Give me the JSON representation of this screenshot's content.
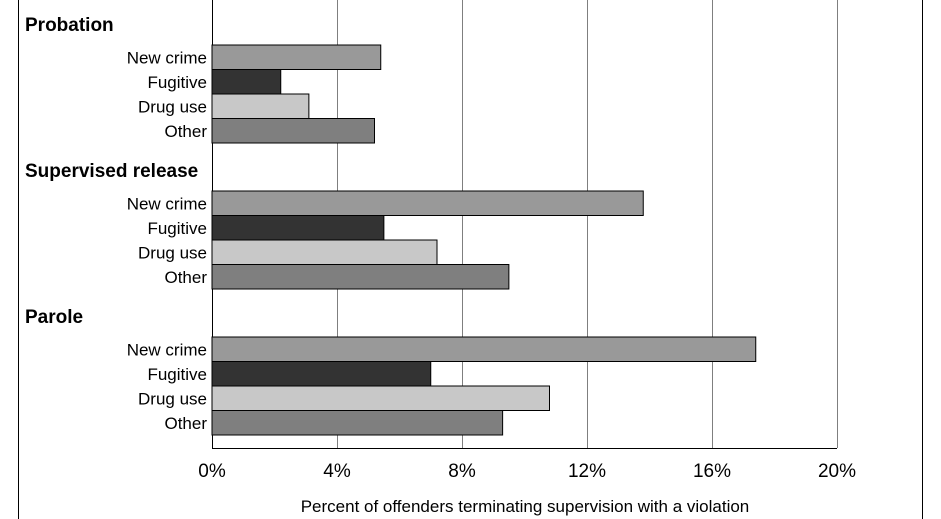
{
  "chart_data": {
    "type": "bar",
    "orientation": "horizontal",
    "xlabel": "Percent of offenders terminating supervision with a violation",
    "ylabel": "",
    "xlim": [
      0,
      20
    ],
    "ticks": [
      0,
      4,
      8,
      12,
      16,
      20
    ],
    "tick_labels": [
      "0%",
      "4%",
      "8%",
      "12%",
      "16%",
      "20%"
    ],
    "grid": "vertical",
    "categories": [
      "New crime",
      "Fugitive",
      "Drug use",
      "Other"
    ],
    "category_colors": [
      "#999999",
      "#333333",
      "#c8c8c8",
      "#7f7f7f"
    ],
    "groups": [
      {
        "name": "Probation",
        "items": [
          {
            "label": "New crime",
            "value": 5.4
          },
          {
            "label": "Fugitive",
            "value": 2.2
          },
          {
            "label": "Drug use",
            "value": 3.1
          },
          {
            "label": "Other",
            "value": 5.2
          }
        ]
      },
      {
        "name": "Supervised release",
        "items": [
          {
            "label": "New crime",
            "value": 13.8
          },
          {
            "label": "Fugitive",
            "value": 5.5
          },
          {
            "label": "Drug use",
            "value": 7.2
          },
          {
            "label": "Other",
            "value": 9.5
          }
        ]
      },
      {
        "name": "Parole",
        "items": [
          {
            "label": "New crime",
            "value": 17.4
          },
          {
            "label": "Fugitive",
            "value": 7.0
          },
          {
            "label": "Drug use",
            "value": 10.8
          },
          {
            "label": "Other",
            "value": 9.3
          }
        ]
      }
    ]
  }
}
